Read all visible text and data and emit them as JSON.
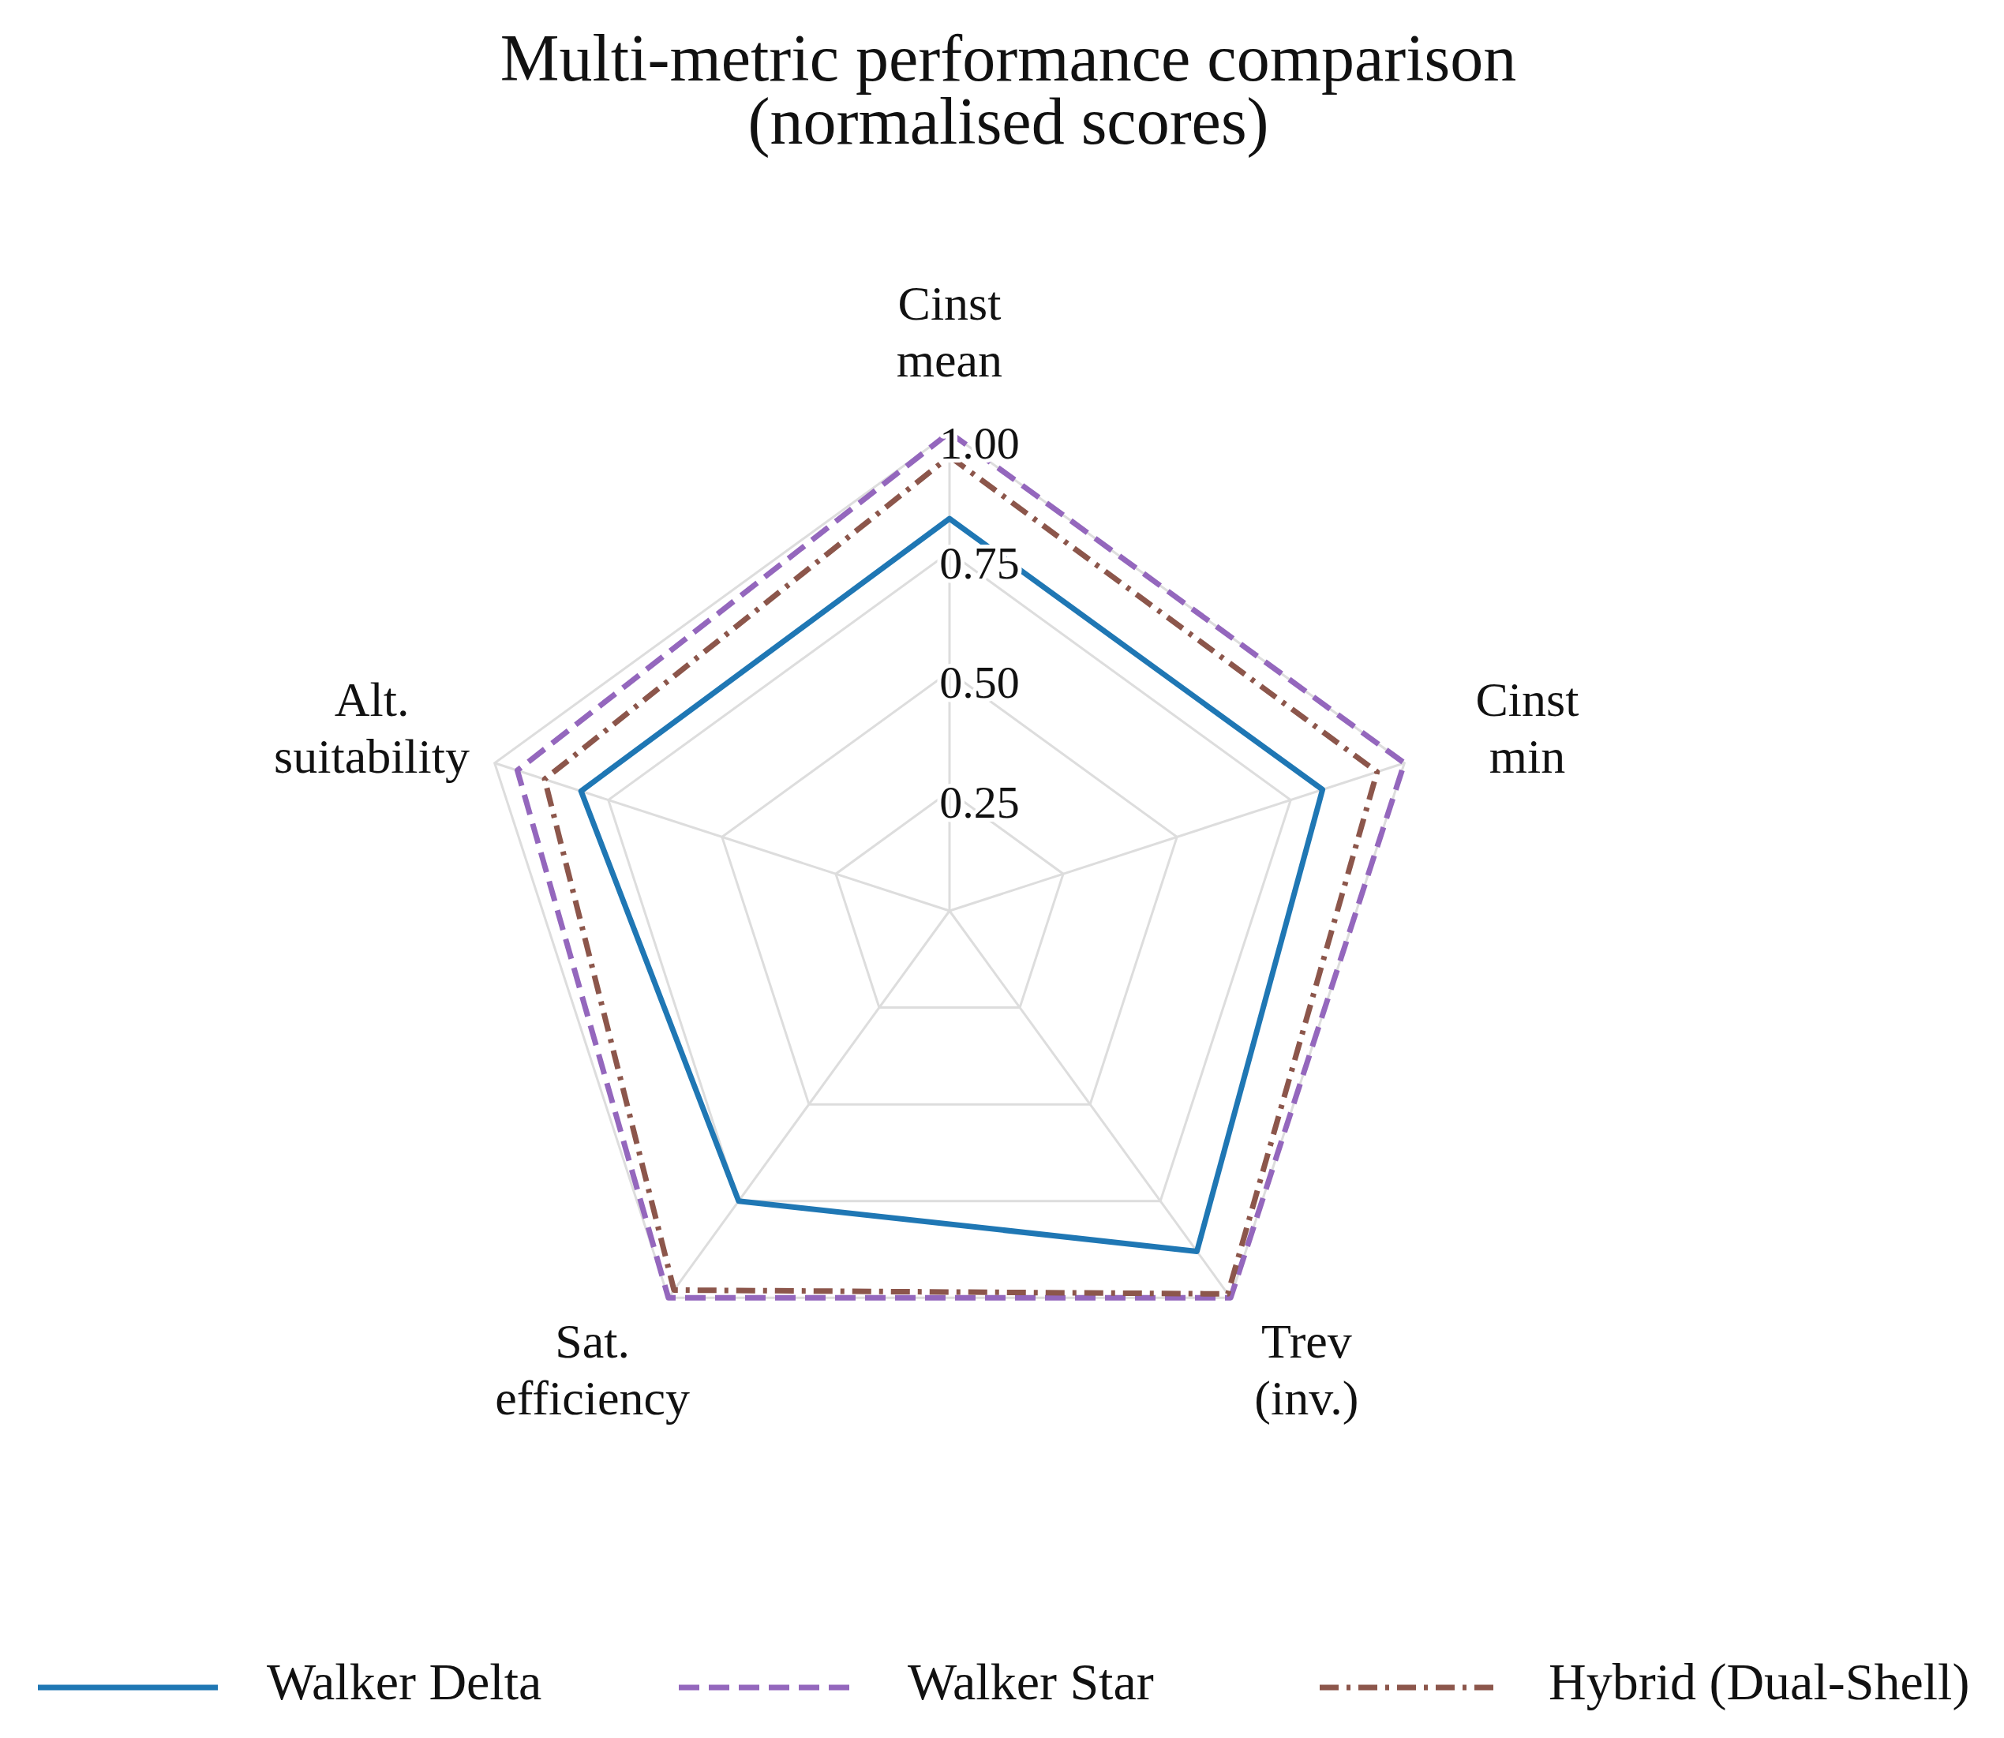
{
  "chart_data": {
    "type": "radar",
    "title": "Multi-metric performance comparison\n(normalised scores)",
    "categories": [
      "Cinst\nmean",
      "Cinst\nmin",
      "Trev\n(inv.)",
      "Sat.\nefficiency",
      "Alt.\nsuitability"
    ],
    "ylim": [
      0,
      1
    ],
    "yticks": [
      {
        "value": 0.25,
        "label": "0.25"
      },
      {
        "value": 0.5,
        "label": "0.50"
      },
      {
        "value": 0.75,
        "label": "0.75"
      },
      {
        "value": 1,
        "label": "1.00"
      }
    ],
    "grid": true,
    "legend": "bottom",
    "marker": "none",
    "series": [
      {
        "name": "Walker Delta",
        "color": "#1f77b4",
        "line_style": "solid",
        "values": [
          0.82,
          0.82,
          0.88,
          0.75,
          0.81
        ]
      },
      {
        "name": "Walker Star",
        "color": "#9467bd",
        "line_style": "dashed",
        "values": [
          1.0,
          1.0,
          1.0,
          1.0,
          0.95
        ]
      },
      {
        "name": "Hybrid (Dual-Shell)",
        "color": "#8c564b",
        "line_style": "dashdot",
        "values": [
          0.95,
          0.94,
          0.99,
          0.98,
          0.89
        ]
      }
    ]
  }
}
